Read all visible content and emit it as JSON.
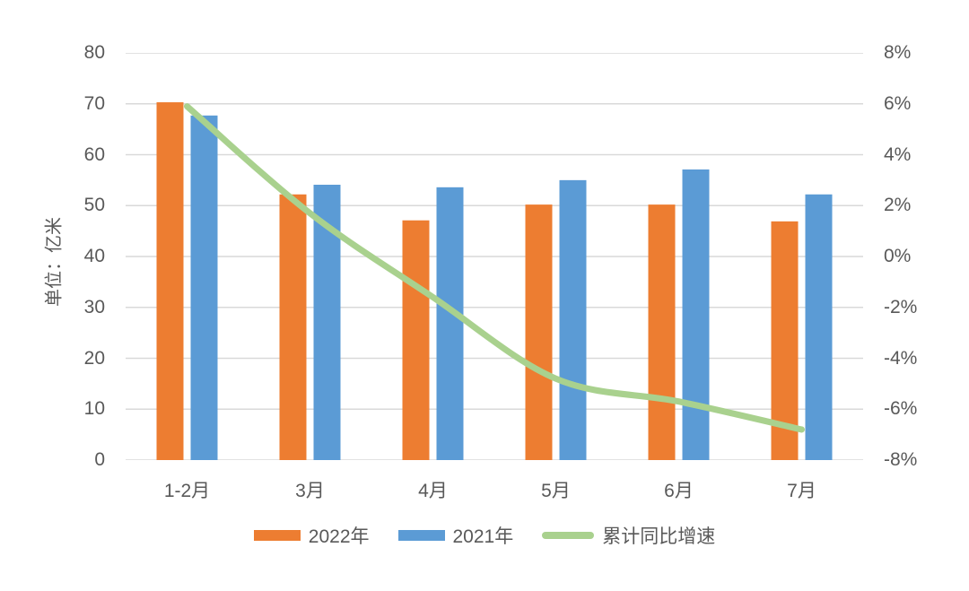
{
  "chart_data": {
    "type": "combo",
    "title": "",
    "categories": [
      "1-2月",
      "3月",
      "4月",
      "5月",
      "6月",
      "7月"
    ],
    "series": [
      {
        "name": "2022年",
        "type": "bar",
        "axis": "left",
        "color": "#ED7D31",
        "values": [
          70.3,
          52.2,
          47.1,
          50.2,
          50.2,
          46.9
        ]
      },
      {
        "name": "2021年",
        "type": "bar",
        "axis": "left",
        "color": "#5B9BD5",
        "values": [
          67.7,
          54.1,
          53.6,
          55.0,
          57.1,
          52.2
        ]
      },
      {
        "name": "累计同比增速",
        "type": "line",
        "axis": "right",
        "color": "#A9D18E",
        "smooth": true,
        "values": [
          5.9,
          1.7,
          -1.6,
          -4.8,
          -5.7,
          -6.8
        ]
      }
    ],
    "left_axis": {
      "title": "单位：亿米",
      "min": 0,
      "max": 80,
      "step": 10,
      "tick_labels": [
        "80",
        "70",
        "60",
        "50",
        "40",
        "30",
        "20",
        "10",
        "0"
      ]
    },
    "right_axis": {
      "min": -8,
      "max": 8,
      "step": 2,
      "format": "percent",
      "tick_labels": [
        "8%",
        "6%",
        "4%",
        "2%",
        "0%",
        "-2%",
        "-4%",
        "-6%",
        "-8%"
      ]
    },
    "grid": true,
    "legend_position": "bottom"
  },
  "legend": {
    "items": [
      {
        "label": "2022年",
        "swatch": "bar",
        "color": "#ED7D31"
      },
      {
        "label": "2021年",
        "swatch": "bar",
        "color": "#5B9BD5"
      },
      {
        "label": "累计同比增速",
        "swatch": "line",
        "color": "#A9D18E"
      }
    ]
  },
  "style": {
    "grid_color": "#D9D9D9",
    "text_color": "#595959",
    "background": "#FFFFFF"
  }
}
